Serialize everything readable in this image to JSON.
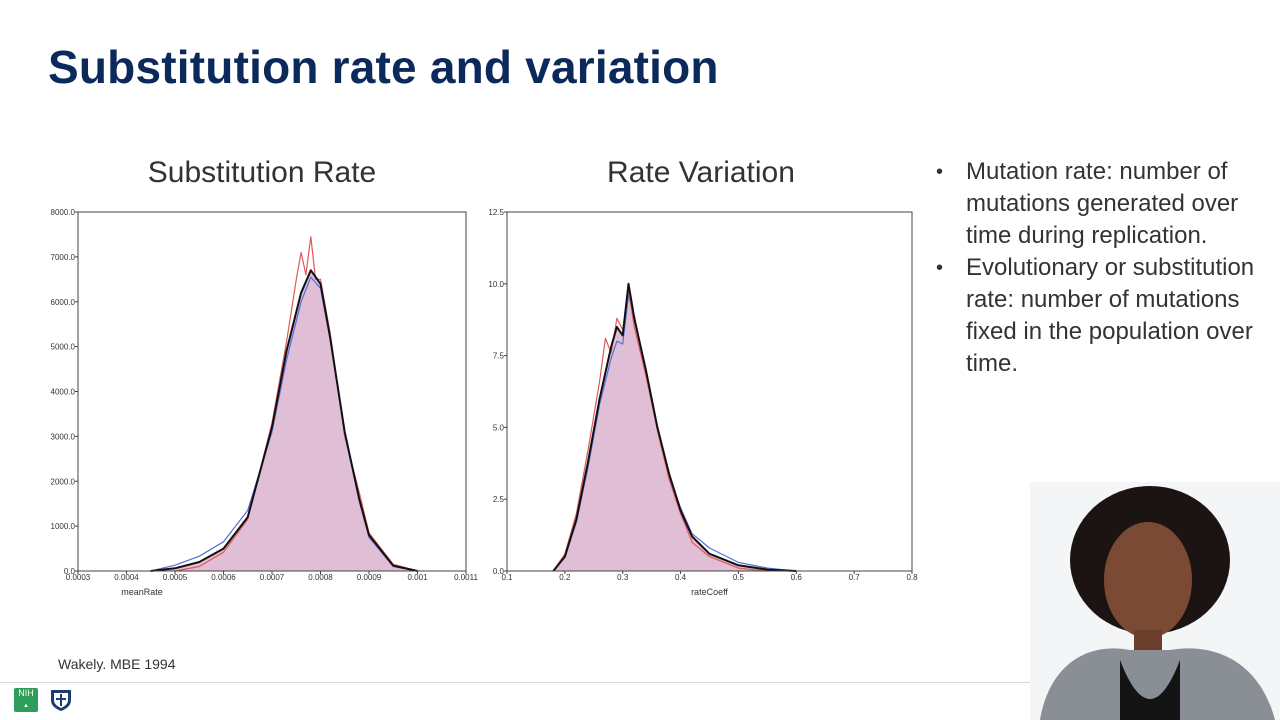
{
  "slide": {
    "title": "Substitution rate and variation",
    "citation": "Wakely. MBE 1994"
  },
  "bullets": [
    "Mutation rate: number of mutations generated over time during replication.",
    "Evolutionary or substitution rate: number of mutations fixed in the population over time."
  ],
  "chart_data": [
    {
      "type": "line",
      "title": "Substitution Rate",
      "xlabel": "meanRate",
      "ylabel": "",
      "xlim": [
        0.0003,
        0.0011
      ],
      "ylim": [
        0,
        8000
      ],
      "x_ticks": [
        "0.0003",
        "0.0004",
        "0.0005",
        "0.0006",
        "0.0007",
        "0.0008",
        "0.0009",
        "0.001",
        "0.0011"
      ],
      "y_ticks": [
        "0.0",
        "1000.0",
        "2000.0",
        "3000.0",
        "4000.0",
        "5000.0",
        "6000.0",
        "7000.0",
        "8000.0"
      ],
      "grid": false,
      "colors": {
        "fill": "#d9b3cf",
        "black": "#111111",
        "red": "#e0575a",
        "blue": "#5a6fd6"
      },
      "series": [
        {
          "color": "black",
          "filled": true,
          "x": [
            0.00045,
            0.0005,
            0.00055,
            0.0006,
            0.00065,
            0.0007,
            0.00073,
            0.00076,
            0.00078,
            0.0008,
            0.00082,
            0.00085,
            0.00088,
            0.0009,
            0.00095,
            0.001
          ],
          "y": [
            0,
            60,
            200,
            500,
            1200,
            3200,
            4900,
            6200,
            6700,
            6400,
            5200,
            3100,
            1600,
            800,
            120,
            0
          ]
        },
        {
          "color": "red",
          "filled": false,
          "x": [
            0.0005,
            0.00055,
            0.0006,
            0.00065,
            0.0007,
            0.00073,
            0.00075,
            0.00076,
            0.00077,
            0.00078,
            0.00079,
            0.0008,
            0.00082,
            0.00085,
            0.00088,
            0.0009,
            0.00095,
            0.001
          ],
          "y": [
            0,
            100,
            420,
            1150,
            3300,
            5100,
            6500,
            7100,
            6600,
            7450,
            6500,
            6500,
            5300,
            3000,
            1750,
            850,
            150,
            0
          ]
        },
        {
          "color": "blue",
          "filled": false,
          "x": [
            0.00045,
            0.0005,
            0.00055,
            0.0006,
            0.00065,
            0.0007,
            0.00073,
            0.00076,
            0.00078,
            0.0008,
            0.00082,
            0.00085,
            0.00088,
            0.0009,
            0.00095,
            0.001
          ],
          "y": [
            0,
            130,
            330,
            650,
            1350,
            3100,
            4700,
            6000,
            6550,
            6300,
            5150,
            3050,
            1550,
            750,
            100,
            0
          ]
        }
      ]
    },
    {
      "type": "line",
      "title": "Rate Variation",
      "xlabel": "rateCoeff",
      "ylabel": "",
      "xlim": [
        0.1,
        0.8
      ],
      "ylim": [
        0,
        12.5
      ],
      "x_ticks": [
        "0.1",
        "0.2",
        "0.3",
        "0.4",
        "0.5",
        "0.6",
        "0.7",
        "0.8"
      ],
      "y_ticks": [
        "0.0",
        "2.5",
        "5.0",
        "7.5",
        "10.0",
        "12.5"
      ],
      "grid": false,
      "colors": {
        "fill": "#d9b3cf",
        "black": "#111111",
        "red": "#e0575a",
        "blue": "#5a6fd6"
      },
      "series": [
        {
          "color": "black",
          "filled": true,
          "x": [
            0.18,
            0.2,
            0.22,
            0.24,
            0.26,
            0.28,
            0.29,
            0.3,
            0.31,
            0.32,
            0.34,
            0.36,
            0.38,
            0.4,
            0.42,
            0.45,
            0.5,
            0.55,
            0.6
          ],
          "y": [
            0,
            0.5,
            1.8,
            3.8,
            6.0,
            7.8,
            8.5,
            8.2,
            10.0,
            8.8,
            7.0,
            5.0,
            3.4,
            2.1,
            1.2,
            0.6,
            0.2,
            0.05,
            0
          ]
        },
        {
          "color": "red",
          "filled": false,
          "x": [
            0.18,
            0.2,
            0.22,
            0.24,
            0.26,
            0.27,
            0.28,
            0.29,
            0.3,
            0.31,
            0.32,
            0.34,
            0.36,
            0.38,
            0.4,
            0.42,
            0.45,
            0.5,
            0.55
          ],
          "y": [
            0,
            0.6,
            2.0,
            4.2,
            6.6,
            8.1,
            7.6,
            8.8,
            8.4,
            9.8,
            8.5,
            6.8,
            4.9,
            3.2,
            2.0,
            1.0,
            0.5,
            0.1,
            0
          ]
        },
        {
          "color": "blue",
          "filled": false,
          "x": [
            0.18,
            0.2,
            0.22,
            0.24,
            0.26,
            0.28,
            0.29,
            0.3,
            0.31,
            0.32,
            0.34,
            0.36,
            0.38,
            0.4,
            0.42,
            0.45,
            0.5,
            0.55,
            0.6
          ],
          "y": [
            0,
            0.5,
            1.7,
            3.6,
            5.8,
            7.4,
            8.0,
            7.9,
            9.6,
            8.9,
            6.9,
            5.0,
            3.3,
            2.2,
            1.3,
            0.8,
            0.3,
            0.1,
            0
          ]
        }
      ]
    }
  ]
}
